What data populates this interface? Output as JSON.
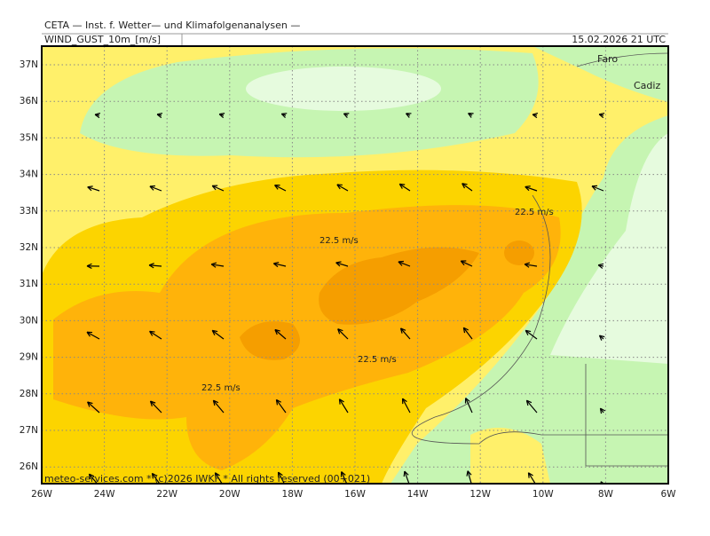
{
  "header": {
    "title": "CETA — Inst. f. Wetter— und Klimafolgenanalysen —",
    "field": "WIND_GUST_10m_[m/s]",
    "valid": "15.02.2026 21 UTC"
  },
  "lat_labels": [
    "37N",
    "36N",
    "35N",
    "34N",
    "33N",
    "32N",
    "31N",
    "30N",
    "29N",
    "28N",
    "27N",
    "26N"
  ],
  "lon_labels": [
    "26W",
    "24W",
    "22W",
    "20W",
    "18W",
    "16W",
    "14W",
    "12W",
    "10W",
    "8W",
    "6W"
  ],
  "annotations": [
    "22.5 m/s",
    "22.5 m/s",
    "22.5 m/s",
    "22.5 m/s"
  ],
  "places": [
    "Faro",
    "Cadiz"
  ],
  "footer": "meteo-services.com * (c)2026 IWKF * All rights reserved (00+021)"
}
